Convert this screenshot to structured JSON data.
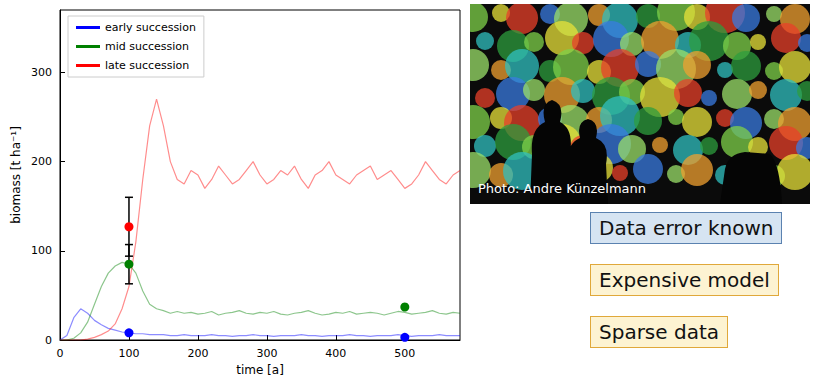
{
  "chart_data": {
    "type": "line",
    "x_label": "time [a]",
    "y_label": "biomass [t ha⁻¹]",
    "xlim": [
      0,
      580
    ],
    "xticks": [
      0,
      100,
      200,
      300,
      400,
      500
    ],
    "ylim": [
      0,
      370
    ],
    "yticks": [
      0,
      100,
      200,
      300
    ],
    "grid": false,
    "legend": "upper left",
    "x": [
      0,
      10,
      20,
      30,
      40,
      50,
      60,
      70,
      80,
      90,
      100,
      110,
      120,
      130,
      140,
      150,
      160,
      170,
      180,
      190,
      200,
      210,
      220,
      230,
      240,
      250,
      260,
      270,
      280,
      290,
      300,
      310,
      320,
      330,
      340,
      350,
      360,
      370,
      380,
      390,
      400,
      410,
      420,
      430,
      440,
      450,
      460,
      470,
      480,
      490,
      500,
      510,
      520,
      530,
      540,
      550,
      560,
      570,
      580
    ],
    "series": [
      {
        "name": "early succession",
        "color": "#0000ff",
        "values": [
          0,
          5,
          25,
          35,
          30,
          22,
          17,
          13,
          11,
          9,
          8,
          7,
          7,
          6,
          6,
          6,
          5,
          5,
          6,
          5,
          5,
          5,
          6,
          5,
          5,
          4,
          5,
          5,
          6,
          5,
          5,
          4,
          5,
          5,
          5,
          6,
          5,
          5,
          4,
          5,
          5,
          5,
          6,
          5,
          5,
          4,
          5,
          5,
          5,
          6,
          5,
          4,
          5,
          5,
          5,
          6,
          5,
          5,
          5
        ],
        "obs_x": [
          100,
          500
        ],
        "obs_values": [
          8,
          3
        ],
        "obs_errors": [
          null,
          null
        ]
      },
      {
        "name": "mid succession",
        "color": "#008000",
        "values": [
          0,
          0,
          2,
          8,
          20,
          40,
          60,
          75,
          83,
          87,
          85,
          75,
          55,
          40,
          35,
          33,
          30,
          32,
          30,
          31,
          29,
          30,
          32,
          28,
          30,
          31,
          33,
          30,
          29,
          31,
          30,
          32,
          29,
          28,
          30,
          31,
          33,
          30,
          28,
          29,
          31,
          30,
          32,
          29,
          30,
          31,
          30,
          28,
          30,
          32,
          31,
          29,
          30,
          31,
          33,
          30,
          29,
          31,
          30
        ],
        "obs_x": [
          100,
          500
        ],
        "obs_values": [
          85,
          37
        ],
        "obs_errors": [
          22,
          null
        ]
      },
      {
        "name": "late succession",
        "color": "#ff0000",
        "values": [
          0,
          0,
          0,
          0,
          1,
          3,
          6,
          10,
          18,
          35,
          60,
          110,
          180,
          240,
          270,
          240,
          200,
          180,
          175,
          190,
          185,
          170,
          180,
          195,
          185,
          175,
          180,
          190,
          200,
          185,
          175,
          180,
          190,
          185,
          195,
          180,
          170,
          185,
          190,
          200,
          185,
          180,
          175,
          185,
          190,
          195,
          180,
          185,
          190,
          180,
          170,
          175,
          185,
          200,
          190,
          180,
          175,
          185,
          190
        ],
        "obs_x": [
          100
        ],
        "obs_values": [
          127
        ],
        "obs_errors": [
          33
        ]
      }
    ]
  },
  "photo": {
    "credit": "Photo: Andre Künzelmann"
  },
  "boxes": [
    {
      "text": "Data error known",
      "color": "#d6e4f2",
      "border_color": "#5b82b0"
    },
    {
      "text": "Expensive model",
      "color": "#fdf3d2",
      "border_color": "#e0a83a"
    },
    {
      "text": "Sparse data",
      "color": "#fdf3d2",
      "border_color": "#e0a83a"
    }
  ]
}
